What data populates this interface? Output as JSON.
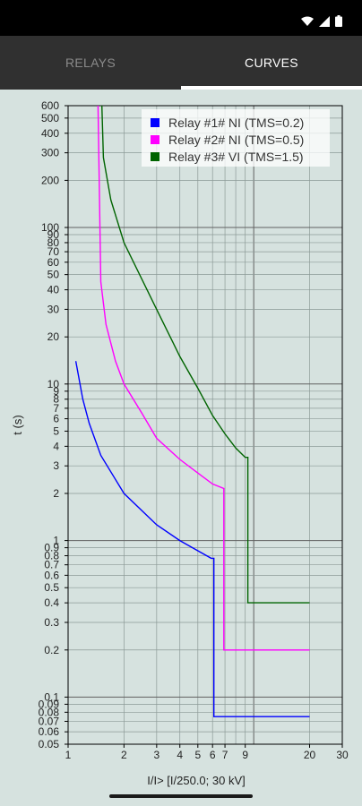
{
  "status_bar": {
    "icons": [
      "wifi-icon",
      "cell-signal-icon",
      "battery-icon"
    ]
  },
  "tabs": [
    {
      "label": "RELAYS",
      "selected": false
    },
    {
      "label": "CURVES",
      "selected": true
    }
  ],
  "colors": {
    "background": "#d6e2df",
    "tab_bar": "#303030",
    "relay1": "#0000ff",
    "relay2": "#ff00ff",
    "relay3": "#006400"
  },
  "chart_data": {
    "type": "line",
    "xlabel": "I/I> [I/250.0; 30 kV]",
    "ylabel": "t (s)",
    "x_scale": "log",
    "y_scale": "log",
    "xlim": [
      1,
      30
    ],
    "ylim": [
      0.05,
      600
    ],
    "grid": true,
    "legend_position": "top-right",
    "x_tick_labels": [
      "1",
      "2",
      "3",
      "4",
      "5",
      "6",
      "7",
      "9",
      "20",
      "30"
    ],
    "y_tick_labels": [
      "0.05",
      "0.06",
      "0.07",
      "0.08",
      "0.09",
      "0.1",
      "0.2",
      "0.3",
      "0.4",
      "0.5",
      "0.6",
      "0.7",
      "0.8",
      "0.9",
      "1",
      "2",
      "3",
      "4",
      "5",
      "6",
      "7",
      "8",
      "9",
      "10",
      "20",
      "30",
      "40",
      "50",
      "60",
      "70",
      "80",
      "90",
      "100",
      "200",
      "300",
      "400",
      "500",
      "600"
    ],
    "series": [
      {
        "name": "Relay #1# NI (TMS=0.2)",
        "color": "#0000ff",
        "points": [
          [
            1.1,
            14.0
          ],
          [
            1.2,
            8.0
          ],
          [
            1.3,
            5.6
          ],
          [
            1.5,
            3.5
          ],
          [
            2.0,
            2.0
          ],
          [
            3.0,
            1.26
          ],
          [
            4.0,
            1.0
          ],
          [
            5.0,
            0.86
          ],
          [
            5.9,
            0.77
          ],
          [
            6.1,
            0.77
          ],
          [
            6.1,
            0.075
          ],
          [
            20.0,
            0.075
          ]
        ]
      },
      {
        "name": "Relay #2# NI (TMS=0.5)",
        "color": "#ff00ff",
        "points": [
          [
            1.45,
            600
          ],
          [
            1.5,
            45
          ],
          [
            1.6,
            24
          ],
          [
            1.8,
            14
          ],
          [
            2.0,
            10
          ],
          [
            2.5,
            6.5
          ],
          [
            3.0,
            4.5
          ],
          [
            4.0,
            3.3
          ],
          [
            5.0,
            2.7
          ],
          [
            6.0,
            2.3
          ],
          [
            6.9,
            2.15
          ],
          [
            6.9,
            0.2
          ],
          [
            20.0,
            0.2
          ]
        ]
      },
      {
        "name": "Relay #3# VI (TMS=1.5)",
        "color": "#006400",
        "points": [
          [
            1.52,
            600
          ],
          [
            1.55,
            280
          ],
          [
            1.7,
            150
          ],
          [
            2.0,
            80
          ],
          [
            3.0,
            30
          ],
          [
            4.0,
            15
          ],
          [
            5.0,
            9.4
          ],
          [
            6.0,
            6.3
          ],
          [
            7.0,
            4.8
          ],
          [
            8.0,
            3.9
          ],
          [
            9.0,
            3.4
          ],
          [
            9.3,
            3.4
          ],
          [
            9.3,
            0.4
          ],
          [
            20.0,
            0.4
          ]
        ]
      }
    ]
  }
}
